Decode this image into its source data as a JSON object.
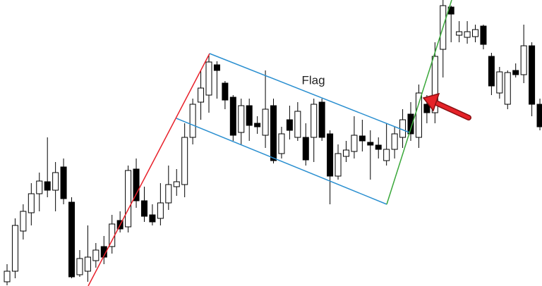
{
  "chart_data": {
    "type": "candlestick",
    "annotation": "Flag",
    "ylim": [
      0,
      406
    ],
    "up_color": "#ffffff",
    "down_color": "#000000",
    "edge_color": "#000000",
    "open": [
      6,
      21,
      78,
      104,
      131,
      148,
      136,
      169,
      119,
      16,
      21,
      36,
      56,
      56,
      93,
      84,
      166,
      121,
      101,
      96,
      118,
      141,
      144,
      211,
      261,
      271,
      314,
      288,
      268,
      218,
      256,
      231,
      214,
      256,
      188,
      236,
      211,
      211,
      211,
      261,
      216,
      156,
      184,
      191,
      213,
      204,
      200,
      178,
      194,
      211,
      244,
      211,
      258,
      246,
      336,
      396,
      356,
      353,
      354,
      369,
      326,
      274,
      258,
      306,
      300,
      341,
      258
    ],
    "high": [
      31,
      96,
      116,
      146,
      161,
      211,
      176,
      181,
      126,
      51,
      86,
      61,
      71,
      101,
      106,
      171,
      181,
      141,
      116,
      146,
      171,
      166,
      231,
      266,
      306,
      328,
      319,
      291,
      271,
      266,
      266,
      241,
      306,
      266,
      226,
      256,
      261,
      231,
      266,
      266,
      221,
      201,
      206,
      241,
      236,
      221,
      211,
      231,
      226,
      251,
      261,
      286,
      271,
      346,
      406,
      398,
      376,
      376,
      371,
      371,
      331,
      311,
      306,
      316,
      371,
      346,
      266
    ],
    "low": [
      1,
      11,
      66,
      86,
      106,
      126,
      106,
      116,
      11,
      13,
      6,
      26,
      31,
      46,
      76,
      76,
      111,
      91,
      86,
      86,
      108,
      128,
      126,
      201,
      236,
      246,
      266,
      251,
      206,
      201,
      206,
      216,
      196,
      174,
      181,
      208,
      206,
      171,
      176,
      206,
      116,
      151,
      176,
      181,
      191,
      151,
      181,
      171,
      181,
      196,
      206,
      196,
      231,
      231,
      296,
      346,
      346,
      344,
      346,
      336,
      271,
      266,
      251,
      296,
      288,
      241,
      221
    ],
    "close": [
      21,
      86,
      106,
      131,
      149,
      136,
      161,
      124,
      13,
      39,
      41,
      51,
      41,
      88,
      81,
      164,
      121,
      99,
      91,
      118,
      144,
      148,
      211,
      258,
      281,
      318,
      306,
      264,
      214,
      256,
      228,
      226,
      251,
      178,
      216,
      221,
      248,
      179,
      258,
      211,
      156,
      188,
      193,
      214,
      206,
      200,
      194,
      194,
      216,
      236,
      216,
      274,
      246,
      326,
      398,
      386,
      361,
      361,
      364,
      343,
      284,
      304,
      303,
      300,
      341,
      258,
      226
    ]
  }
}
